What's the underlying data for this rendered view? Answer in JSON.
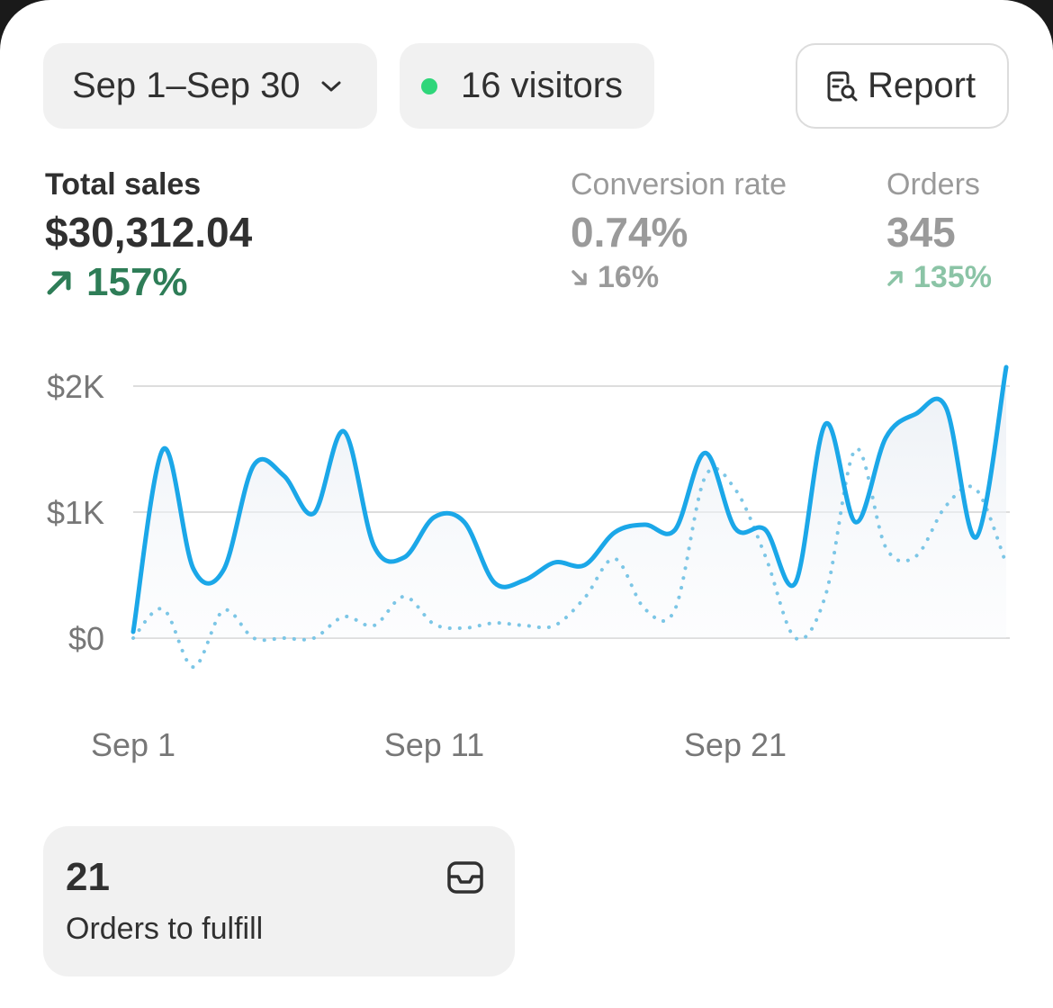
{
  "header": {
    "date_range": "Sep 1–Sep 30",
    "visitors": "16 visitors",
    "report_label": "Report"
  },
  "metrics": {
    "total_sales": {
      "label": "Total sales",
      "value": "$30,312.04",
      "change": "157%",
      "direction": "up"
    },
    "conversion": {
      "label": "Conversion rate",
      "value": "0.74%",
      "change": "16%",
      "direction": "down"
    },
    "orders": {
      "label": "Orders",
      "value": "345",
      "change": "135%",
      "direction": "up"
    }
  },
  "chart_data": {
    "type": "line",
    "y_ticks": [
      "$2K",
      "$1K",
      "$0"
    ],
    "x_ticks": [
      "Sep 1",
      "Sep 11",
      "Sep 21"
    ],
    "ylim": [
      0,
      2000
    ],
    "series": [
      {
        "style": "solid",
        "color": "#1ba7e8",
        "values": [
          50,
          1500,
          550,
          540,
          1370,
          1290,
          990,
          1640,
          730,
          640,
          960,
          920,
          440,
          460,
          600,
          580,
          840,
          900,
          860,
          1470,
          870,
          860,
          440,
          1700,
          920,
          1590,
          1780,
          1830,
          800,
          2150
        ]
      },
      {
        "style": "dotted",
        "color": "#7cc6e6",
        "values": [
          0,
          230,
          -230,
          220,
          0,
          0,
          0,
          170,
          100,
          330,
          110,
          80,
          120,
          100,
          100,
          320,
          630,
          230,
          230,
          1280,
          1180,
          650,
          0,
          340,
          1500,
          720,
          650,
          1050,
          1180,
          590
        ]
      }
    ]
  },
  "tile": {
    "value": "21",
    "label": "Orders to fulfill"
  },
  "colors": {
    "accent_line": "#1ba7e8",
    "positive": "#2e7d57",
    "positive_muted": "#8bc4a6",
    "muted": "#9a9a9a",
    "dot": "#2fd67a"
  }
}
